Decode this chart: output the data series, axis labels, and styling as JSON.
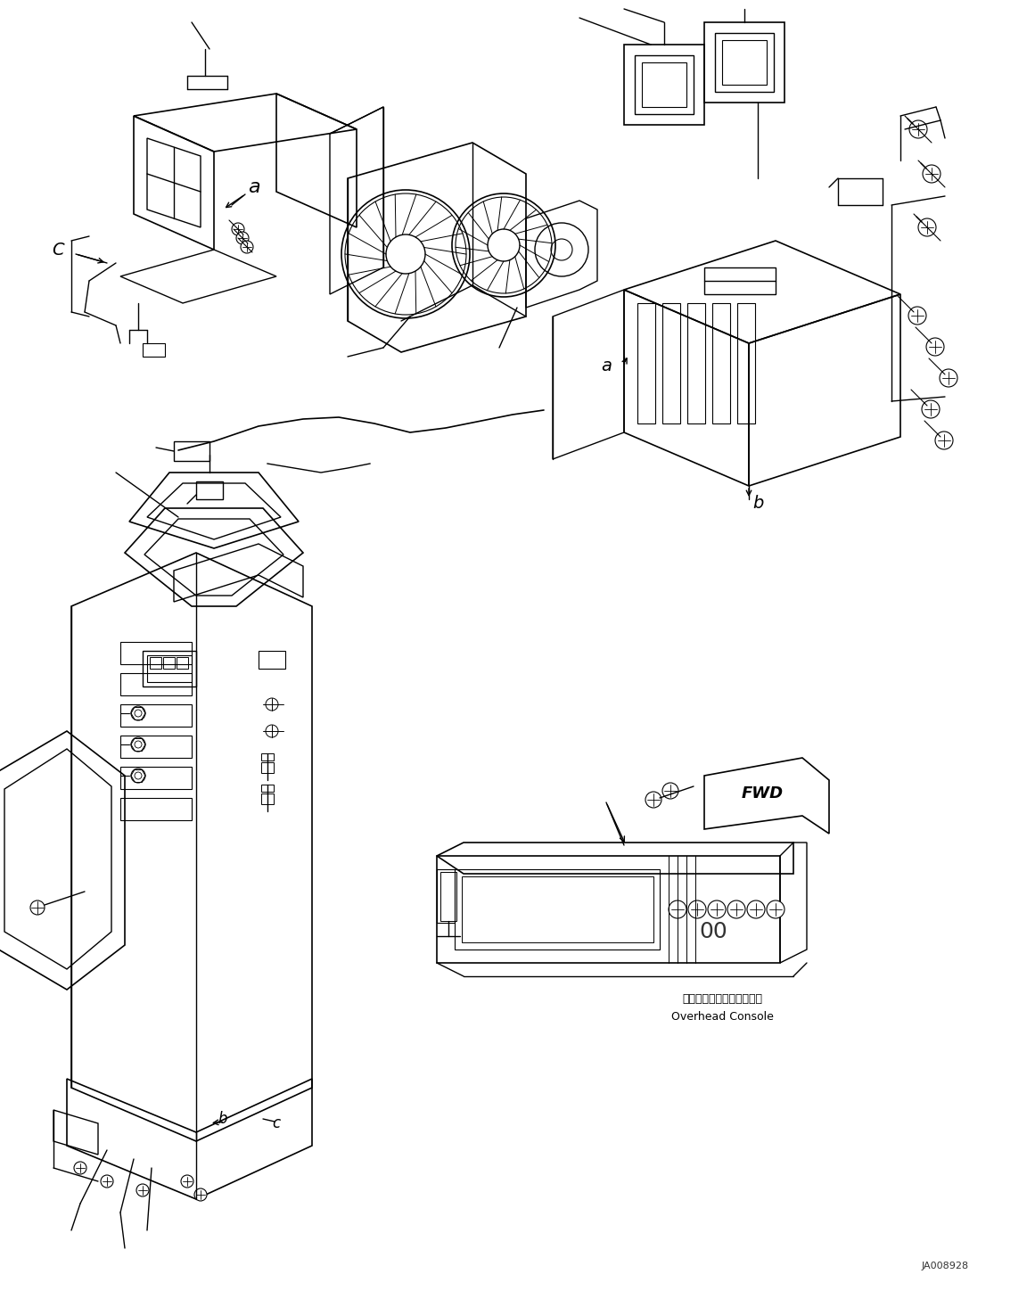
{
  "background_color": "#ffffff",
  "line_color": "#000000",
  "figure_width": 11.61,
  "figure_height": 14.57,
  "dpi": 100,
  "watermark_text": "JA008928",
  "overhead_console_label_jp": "オーバーヘッドコンソール",
  "overhead_console_label_en": "Overhead Console",
  "label_a": "a",
  "label_b": "b",
  "label_c": "c",
  "label_C": "C",
  "fwd_text": "FWD"
}
